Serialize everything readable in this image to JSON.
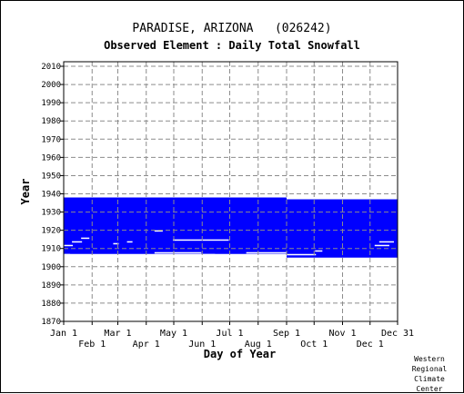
{
  "header": {
    "station_title": "PARADISE, ARIZONA   (026242)",
    "element_title": "Observed Element : Daily Total Snowfall"
  },
  "credit": [
    "Western",
    "Regional",
    "Climate",
    "Center"
  ],
  "colors": {
    "data": "#0000ff",
    "grid": "#8c8c8c",
    "axis": "#000000"
  },
  "chart_data": {
    "type": "heatmap",
    "title": "Observed Element : Daily Total Snowfall",
    "xlabel": "Day of Year",
    "ylabel": "Year",
    "ylim": [
      1870,
      2012
    ],
    "xlim": [
      1,
      365
    ],
    "grid": true,
    "y_ticks": [
      2010,
      2000,
      1990,
      1980,
      1970,
      1960,
      1950,
      1940,
      1930,
      1920,
      1910,
      1900,
      1890,
      1880,
      1870
    ],
    "x_ticks_upper": [
      {
        "label": "Jan 1",
        "day": 1
      },
      {
        "label": "Mar 1",
        "day": 60
      },
      {
        "label": "May 1",
        "day": 121
      },
      {
        "label": "Jul 1",
        "day": 182
      },
      {
        "label": "Sep 1",
        "day": 244
      },
      {
        "label": "Nov 1",
        "day": 305
      },
      {
        "label": "Dec 31",
        "day": 365
      }
    ],
    "x_ticks_lower": [
      {
        "label": "Feb 1",
        "day": 32
      },
      {
        "label": "Apr 1",
        "day": 91
      },
      {
        "label": "Jun 1",
        "day": 152
      },
      {
        "label": "Aug 1",
        "day": 213
      },
      {
        "label": "Oct 1",
        "day": 274
      },
      {
        "label": "Dec 1",
        "day": 335
      }
    ],
    "data_periods": [
      {
        "start_day": 1,
        "end_day": 243,
        "start_year": 1907,
        "end_year": 1937
      },
      {
        "start_day": 244,
        "end_day": 365,
        "start_year": 1905,
        "end_year": 1936
      }
    ],
    "missing_segments": [
      {
        "start_day": 1,
        "end_day": 7,
        "year": 1906
      },
      {
        "start_day": 100,
        "end_day": 150,
        "year": 1907
      },
      {
        "start_day": 150,
        "end_day": 165,
        "year": 1906
      },
      {
        "start_day": 200,
        "end_day": 243,
        "year": 1907
      },
      {
        "start_day": 244,
        "end_day": 275,
        "year": 1906
      },
      {
        "start_day": 120,
        "end_day": 180,
        "year": 1914
      },
      {
        "start_day": 100,
        "end_day": 108,
        "year": 1919
      },
      {
        "start_day": 1,
        "end_day": 10,
        "year": 1911
      },
      {
        "start_day": 10,
        "end_day": 20,
        "year": 1913
      },
      {
        "start_day": 20,
        "end_day": 28,
        "year": 1915
      },
      {
        "start_day": 55,
        "end_day": 60,
        "year": 1912
      },
      {
        "start_day": 70,
        "end_day": 75,
        "year": 1913
      },
      {
        "start_day": 275,
        "end_day": 282,
        "year": 1908
      },
      {
        "start_day": 340,
        "end_day": 355,
        "year": 1911
      },
      {
        "start_day": 345,
        "end_day": 360,
        "year": 1913
      }
    ]
  }
}
